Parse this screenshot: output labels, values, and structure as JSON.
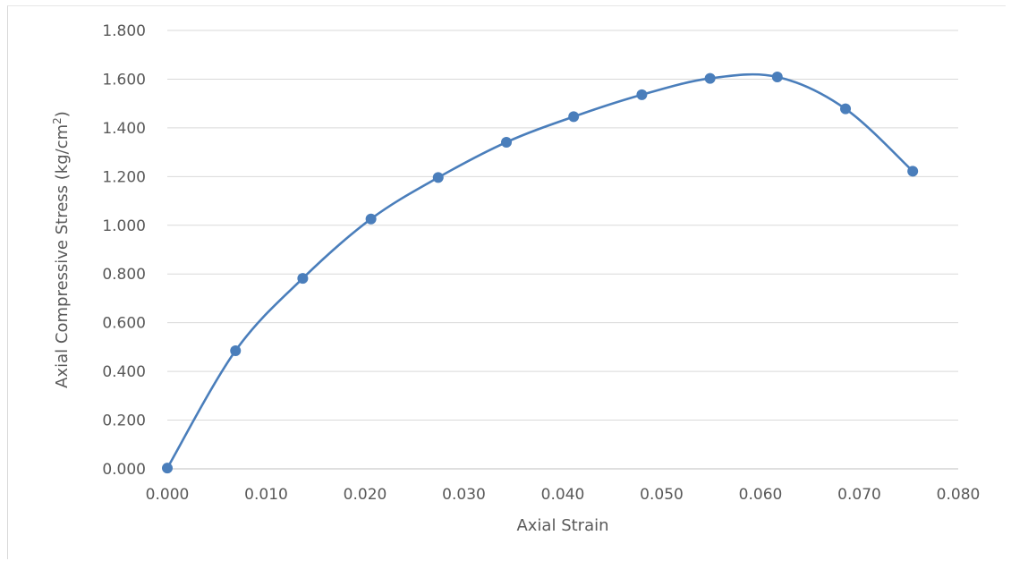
{
  "chart_data": {
    "type": "scatter",
    "title": "",
    "xlabel": "Axial Strain",
    "ylabel_main": "Axial Compressive Stress (kg/cm",
    "ylabel_sup": "2",
    "ylabel_end": ")",
    "xlim": [
      0,
      0.08
    ],
    "ylim": [
      0,
      1.8
    ],
    "x_ticks": [
      "0.000",
      "0.010",
      "0.020",
      "0.030",
      "0.040",
      "0.050",
      "0.060",
      "0.070",
      "0.080"
    ],
    "y_ticks": [
      "0.000",
      "0.200",
      "0.400",
      "0.600",
      "0.800",
      "1.000",
      "1.200",
      "1.400",
      "1.600",
      "1.800"
    ],
    "grid": "horizontal",
    "smooth_line": true,
    "legend": "none",
    "color": "#4a7ebb",
    "series": [
      {
        "x": [
          0.0,
          0.0069,
          0.0137,
          0.0206,
          0.0274,
          0.0343,
          0.0411,
          0.048,
          0.0549,
          0.0617,
          0.0686,
          0.0754
        ],
        "y": [
          0.003,
          0.485,
          0.782,
          1.026,
          1.196,
          1.341,
          1.446,
          1.536,
          1.603,
          1.609,
          1.478,
          1.222
        ]
      }
    ]
  }
}
